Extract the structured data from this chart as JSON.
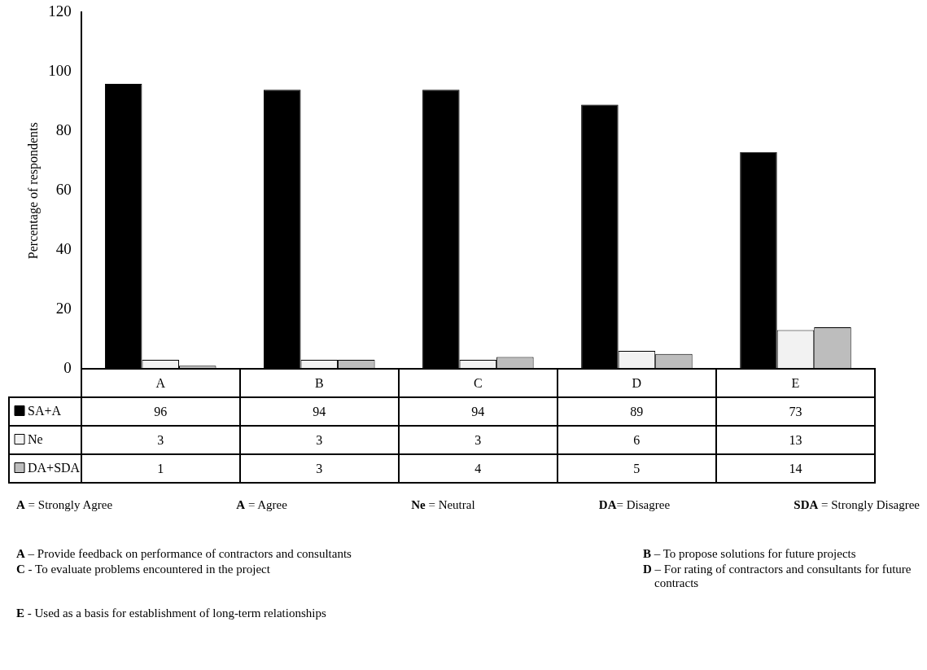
{
  "chart_data": {
    "type": "bar",
    "ylabel": "Percentage of respondents",
    "categories": [
      "A",
      "B",
      "C",
      "D",
      "E"
    ],
    "series": [
      {
        "name": "SA+A",
        "color": "#000000",
        "values": [
          96,
          94,
          94,
          89,
          73
        ]
      },
      {
        "name": "Ne",
        "color": "#f2f2f2",
        "values": [
          3,
          3,
          3,
          6,
          13
        ]
      },
      {
        "name": "DA+SDA",
        "color": "#bdbdbd",
        "values": [
          1,
          3,
          4,
          5,
          14
        ]
      }
    ],
    "ylim": [
      0,
      120
    ],
    "yticks": [
      0,
      20,
      40,
      60,
      80,
      100,
      120
    ],
    "grid": false,
    "legend": "bottom",
    "data_labels": true,
    "annotations": [
      "A = Strongly Agree",
      "A = Agree",
      "Ne = Neutral",
      "DA= Disagree",
      "SDA = Strongly Disagree",
      "A – Provide feedback on performance of contractors and consultants",
      "B – To propose solutions for future projects",
      "C -  To evaluate problems encountered in the project",
      "D – For rating of contractors and consultants for future contracts",
      "E -  Used as a basis for establishment of long-term relationships"
    ]
  }
}
